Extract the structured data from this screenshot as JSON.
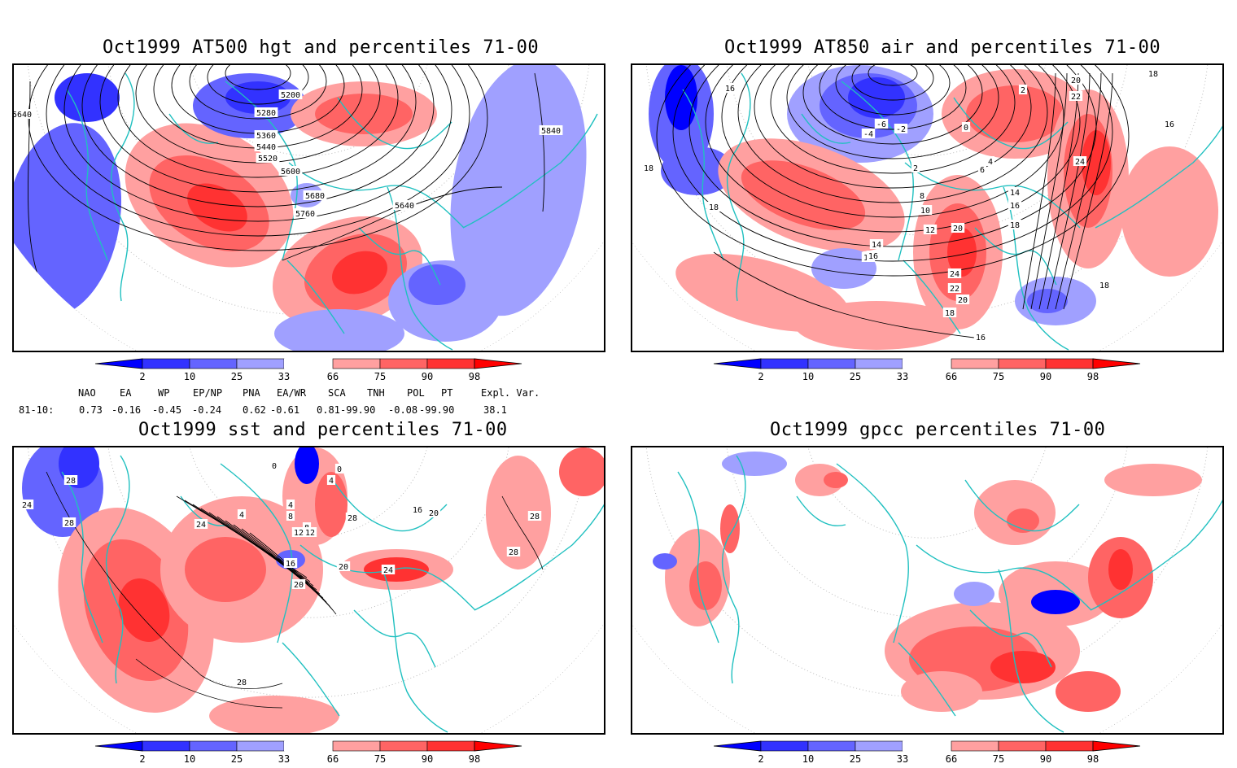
{
  "colorbar": {
    "ticks": [
      "2",
      "10",
      "25",
      "33",
      "66",
      "75",
      "90",
      "98"
    ],
    "colors": {
      "blue_strong": "#0000ff",
      "blue_dark": "#3232ff",
      "blue_mid": "#6464ff",
      "blue_light": "#a0a0ff",
      "red_light": "#ffa0a0",
      "red_mid": "#ff6464",
      "red_dark": "#ff3232",
      "red_strong": "#ff0000"
    }
  },
  "coast_color": "#20c0c0",
  "panels": [
    {
      "id": "tl",
      "title": "Oct1999 AT500 hgt and percentiles 71-00",
      "labels": [
        "5640",
        "5200",
        "5280",
        "5360",
        "5440",
        "5520",
        "5600",
        "5680",
        "5760",
        "5640",
        "5840"
      ]
    },
    {
      "id": "tr",
      "title": "Oct1999 AT850 air and percentiles 71-00",
      "labels": [
        "16",
        "18",
        "2",
        "20",
        "22",
        "24",
        "-4",
        "-6",
        "-2",
        "0",
        "6",
        "4",
        "2",
        "14",
        "16",
        "18",
        "10",
        "12",
        "14",
        "16",
        "20",
        "24",
        "22",
        "20",
        "18",
        "16",
        "18",
        "16",
        "8",
        "16",
        "18",
        "18"
      ]
    },
    {
      "id": "bl",
      "title": "Oct1999 sst and percentiles 71-00",
      "labels": [
        "28",
        "24",
        "28",
        "0",
        "0",
        "4",
        "4",
        "4",
        "8",
        "8",
        "12",
        "12",
        "24",
        "16",
        "20",
        "20",
        "24",
        "16",
        "20",
        "28",
        "28",
        "28",
        "28"
      ]
    },
    {
      "id": "br",
      "title": "Oct1999 gpcc percentiles 71-00",
      "labels": []
    }
  ],
  "stats": {
    "headers": [
      "NAO",
      "EA",
      "WP",
      "EP/NP",
      "PNA",
      "EA/WR",
      "SCA",
      "TNH",
      "POL",
      "PT",
      "Expl. Var."
    ],
    "row_label": "81-10:",
    "values": [
      "0.73",
      "-0.16",
      "-0.45",
      "-0.24",
      "0.62",
      "-0.61",
      "0.81",
      "-99.90",
      "-0.08",
      "-99.90",
      "38.1"
    ]
  }
}
